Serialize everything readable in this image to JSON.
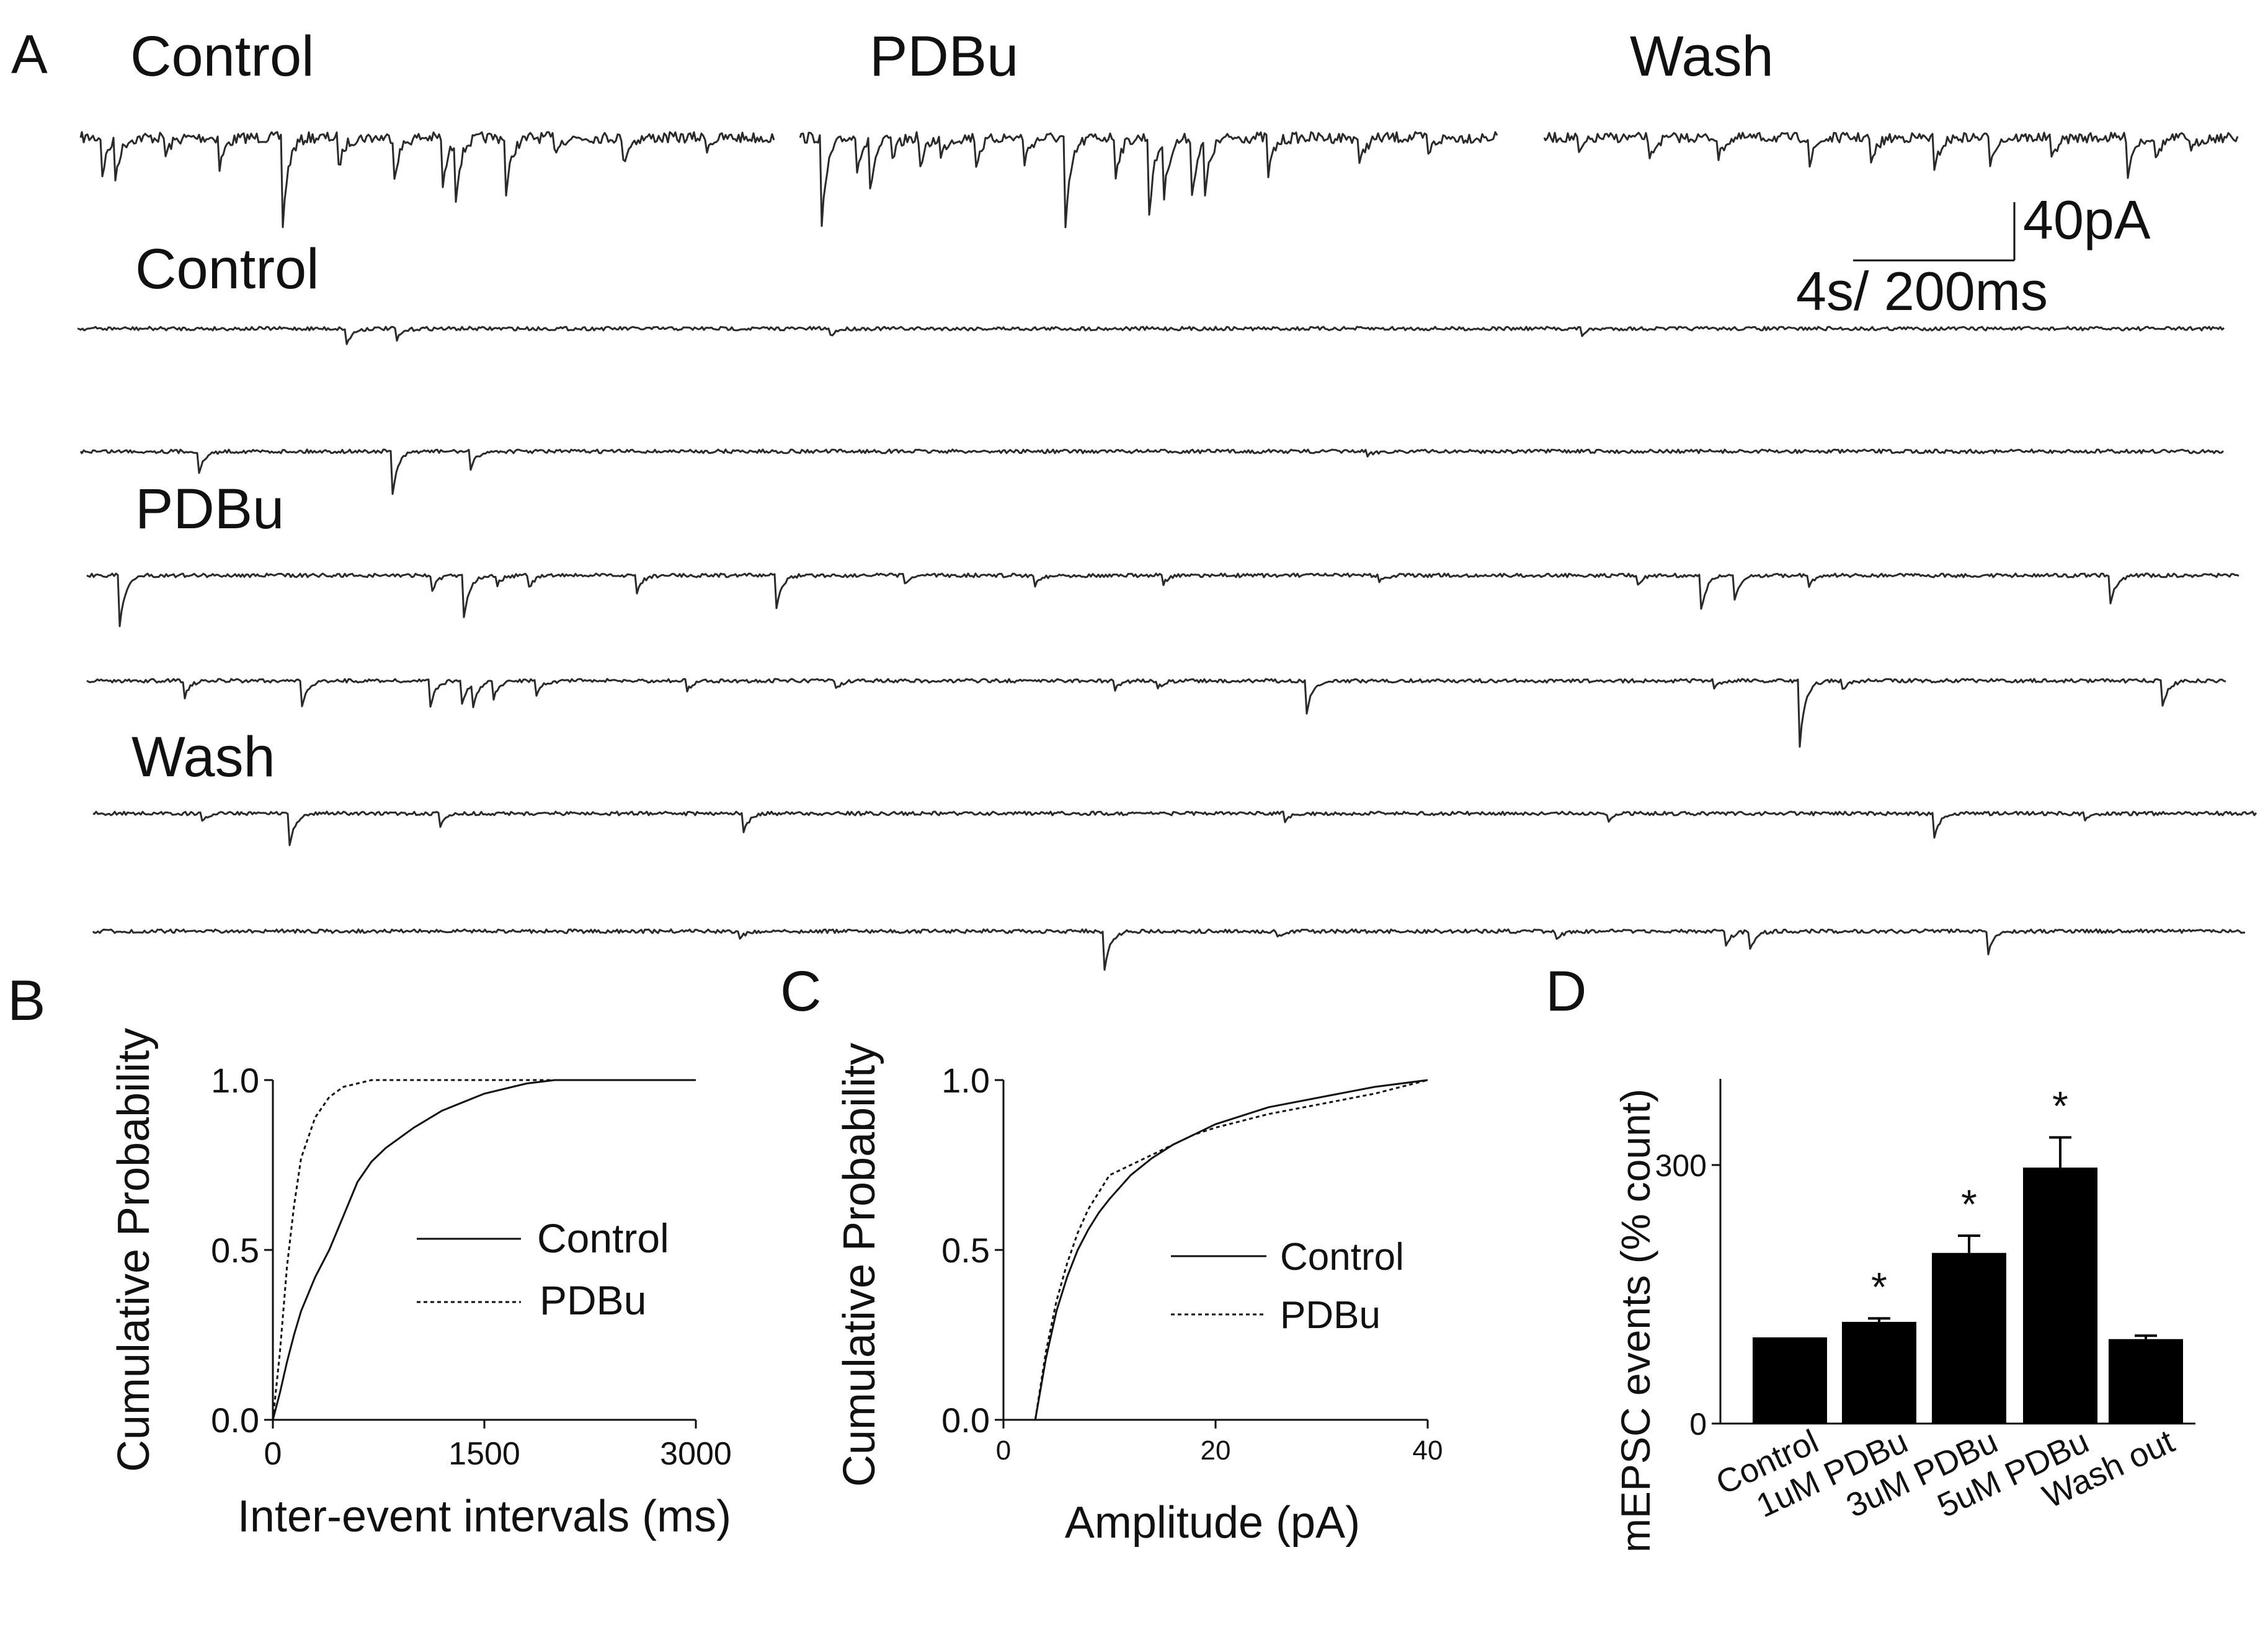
{
  "panel_a": {
    "letter": "A",
    "overview_labels": [
      "Control",
      "PDBu",
      "Wash"
    ],
    "scale_bar": {
      "amplitude_label": "40pA",
      "time_label": "4s/ 200ms"
    },
    "expanded_labels": [
      "Control",
      "PDBu",
      "Wash"
    ]
  },
  "chart_data": [
    {
      "panel": "B",
      "type": "line",
      "xlabel": "Inter-event intervals (ms)",
      "ylabel": "Cumulative Probability",
      "xlim": [
        0,
        3000
      ],
      "ylim": [
        0,
        1
      ],
      "xticks": [
        "0",
        "1500",
        "3000"
      ],
      "yticks": [
        "0.0",
        "0.5",
        "1.0"
      ],
      "legend_position": "center-right",
      "series": [
        {
          "name": "Control",
          "style": "solid",
          "x": [
            0,
            50,
            100,
            150,
            200,
            300,
            400,
            500,
            600,
            700,
            800,
            1000,
            1200,
            1500,
            1800,
            2000,
            3000
          ],
          "y": [
            0,
            0.08,
            0.17,
            0.25,
            0.32,
            0.42,
            0.5,
            0.6,
            0.7,
            0.76,
            0.8,
            0.86,
            0.91,
            0.96,
            0.99,
            1.0,
            1.0
          ]
        },
        {
          "name": "PDBu",
          "style": "dashed",
          "x": [
            0,
            50,
            100,
            150,
            200,
            300,
            400,
            500,
            600,
            700,
            800,
            1000,
            3000
          ],
          "y": [
            0,
            0.2,
            0.45,
            0.63,
            0.77,
            0.89,
            0.95,
            0.98,
            0.99,
            1.0,
            1.0,
            1.0,
            1.0
          ]
        }
      ]
    },
    {
      "panel": "C",
      "type": "line",
      "xlabel": "Amplitude (pA)",
      "ylabel": "Cumulative Probability",
      "xlim": [
        0,
        40
      ],
      "ylim": [
        0,
        1
      ],
      "xticks": [
        "0",
        "20",
        "40"
      ],
      "yticks": [
        "0.0",
        "0.5",
        "1.0"
      ],
      "legend_position": "center-right",
      "series": [
        {
          "name": "Control",
          "style": "solid",
          "x": [
            3,
            4,
            5,
            6,
            7,
            8,
            9,
            10,
            12,
            14,
            16,
            18,
            20,
            25,
            30,
            35,
            40
          ],
          "y": [
            0,
            0.18,
            0.32,
            0.42,
            0.5,
            0.56,
            0.61,
            0.65,
            0.72,
            0.77,
            0.81,
            0.84,
            0.87,
            0.92,
            0.95,
            0.98,
            1.0
          ]
        },
        {
          "name": "PDBu",
          "style": "dashed",
          "x": [
            3,
            4,
            5,
            6,
            7,
            8,
            9,
            10,
            12,
            14,
            16,
            18,
            20,
            25,
            30,
            35,
            40
          ],
          "y": [
            0,
            0.2,
            0.35,
            0.46,
            0.55,
            0.62,
            0.67,
            0.72,
            0.75,
            0.78,
            0.81,
            0.84,
            0.86,
            0.9,
            0.93,
            0.96,
            1.0
          ]
        }
      ]
    },
    {
      "panel": "D",
      "type": "bar",
      "ylabel": "mEPSC events  (% count)",
      "ylim": [
        0,
        400
      ],
      "yticks": [
        "0",
        "300"
      ],
      "categories": [
        "Control",
        "1uM PDBu",
        "3uM PDBu",
        "5uM PDBu",
        "Wash out"
      ],
      "values": [
        100,
        118,
        198,
        297,
        98
      ],
      "errors": [
        0,
        4,
        20,
        35,
        4
      ],
      "significance": [
        "",
        "*",
        "*",
        "*",
        ""
      ]
    }
  ]
}
